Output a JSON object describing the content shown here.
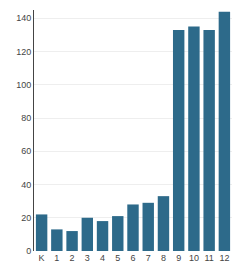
{
  "chart_data": {
    "type": "bar",
    "categories": [
      "K",
      "1",
      "2",
      "3",
      "4",
      "5",
      "6",
      "7",
      "8",
      "9",
      "10",
      "11",
      "12"
    ],
    "values": [
      22,
      13,
      12,
      20,
      18,
      21,
      28,
      29,
      33,
      133,
      135,
      133,
      144
    ],
    "color": "#2d6a8a",
    "ylim": [
      0,
      145
    ],
    "yticks": [
      0,
      20,
      40,
      60,
      80,
      100,
      120,
      140
    ],
    "grid": true
  }
}
